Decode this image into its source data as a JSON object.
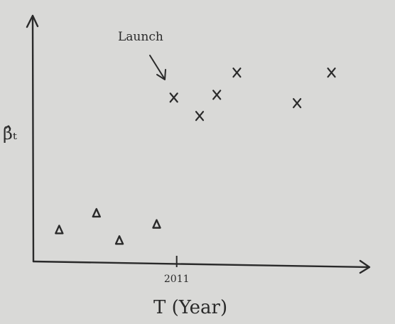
{
  "chart_data": {
    "type": "scatter",
    "title": "",
    "xlabel": "T (Year)",
    "ylabel": "β̂ₜ",
    "x_ticks": [
      {
        "label": "2011",
        "value": 2011
      }
    ],
    "annotation": {
      "text": "Launch"
    },
    "series": [
      {
        "marker": "triangle",
        "points": [
          {
            "x": 2006.9,
            "y": 0.57
          },
          {
            "x": 2008.2,
            "y": 0.87
          },
          {
            "x": 2009.0,
            "y": 0.38
          },
          {
            "x": 2010.3,
            "y": 0.67
          }
        ]
      },
      {
        "marker": "x",
        "points": [
          {
            "x": 2010.9,
            "y": 2.95
          },
          {
            "x": 2011.8,
            "y": 2.62
          },
          {
            "x": 2012.4,
            "y": 3.0
          },
          {
            "x": 2013.1,
            "y": 3.4
          },
          {
            "x": 2015.2,
            "y": 2.85
          },
          {
            "x": 2016.4,
            "y": 3.4
          }
        ]
      }
    ],
    "colors": {
      "ink": "#2a2a2a",
      "paper": "#d9d9d7"
    },
    "xlim": [
      2006,
      2017.7
    ],
    "ylim": [
      0,
      4.4
    ],
    "grid": false
  }
}
